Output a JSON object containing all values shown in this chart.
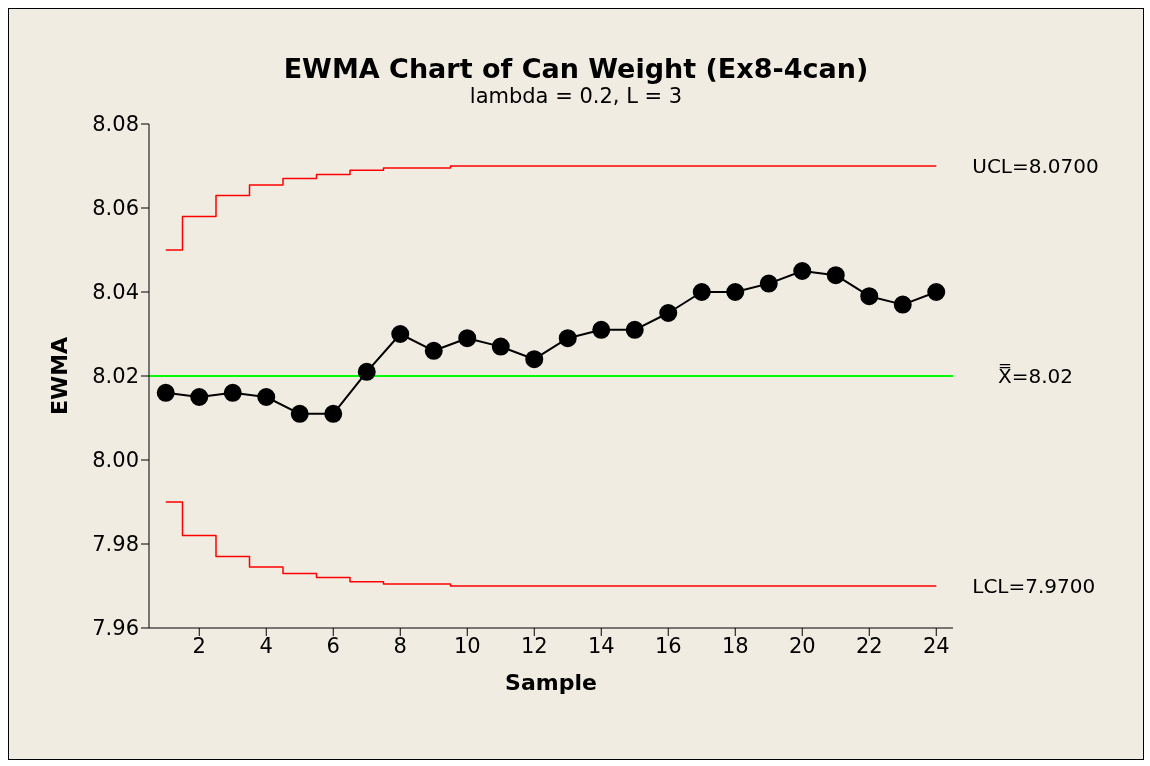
{
  "chart_data": {
    "type": "line",
    "title": "EWMA Chart of Can Weight (Ex8-4can)",
    "subtitle": "lambda = 0.2, L = 3",
    "xlabel": "Sample",
    "ylabel": "EWMA",
    "x": [
      1,
      2,
      3,
      4,
      5,
      6,
      7,
      8,
      9,
      10,
      11,
      12,
      13,
      14,
      15,
      16,
      17,
      18,
      19,
      20,
      21,
      22,
      23,
      24
    ],
    "series": [
      {
        "type": "step",
        "name": "UCL=8.0700",
        "color": "#ff0000",
        "marker": "none",
        "values": [
          8.05,
          8.058,
          8.063,
          8.0655,
          8.067,
          8.068,
          8.069,
          8.0695,
          8.0695,
          8.07,
          8.07,
          8.07,
          8.07,
          8.07,
          8.07,
          8.07,
          8.07,
          8.07,
          8.07,
          8.07,
          8.07,
          8.07,
          8.07,
          8.07
        ]
      },
      {
        "type": "step",
        "name": "LCL=7.9700",
        "color": "#ff0000",
        "marker": "none",
        "values": [
          7.99,
          7.982,
          7.977,
          7.9745,
          7.973,
          7.972,
          7.971,
          7.9705,
          7.9705,
          7.97,
          7.97,
          7.97,
          7.97,
          7.97,
          7.97,
          7.97,
          7.97,
          7.97,
          7.97,
          7.97,
          7.97,
          7.97,
          7.97,
          7.97
        ]
      },
      {
        "color": "#000000",
        "marker": "circle",
        "values": [
          8.016,
          8.015,
          8.016,
          8.015,
          8.011,
          8.011,
          8.021,
          8.03,
          8.026,
          8.029,
          8.027,
          8.024,
          8.029,
          8.031,
          8.031,
          8.035,
          8.04,
          8.04,
          8.042,
          8.045,
          8.044,
          8.039,
          8.037,
          8.04
        ]
      }
    ],
    "ref_lines": [
      {
        "axis": "y",
        "value": 8.02,
        "label": "X̿=8.02",
        "color": "#00ff00"
      }
    ],
    "xlim": [
      0.5,
      24.5
    ],
    "xticks": [
      2,
      4,
      6,
      8,
      10,
      12,
      14,
      16,
      18,
      20,
      22,
      24
    ],
    "ylim": [
      7.96,
      8.08
    ],
    "yticks": [
      7.96,
      7.98,
      {
        "value": 8,
        "label": "8.00"
      },
      8.02,
      8.04,
      8.06,
      8.08
    ],
    "grid": false,
    "legend": false,
    "line_style": "solid"
  }
}
